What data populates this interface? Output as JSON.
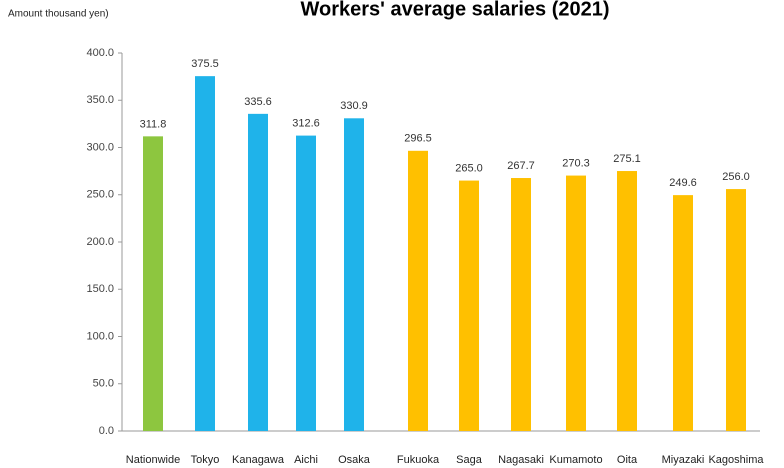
{
  "chart_data": {
    "type": "bar",
    "title": "Workers' average salaries (2021)",
    "y_label": "Amount thousand yen)",
    "categories": [
      "Nationwide",
      "Tokyo",
      "Kanagawa",
      "Aichi",
      "Osaka",
      "Fukuoka",
      "Saga",
      "Nagasaki",
      "Kumamoto",
      "Oita",
      "Miyazaki",
      "Kagoshima"
    ],
    "values": [
      311.8,
      375.5,
      335.6,
      312.6,
      330.9,
      296.5,
      265.0,
      267.7,
      270.3,
      275.1,
      249.6,
      256.0
    ],
    "value_labels": [
      "311.8",
      "375.5",
      "335.6",
      "312.6",
      "330.9",
      "296.5",
      "265.0",
      "267.7",
      "270.3",
      "275.1",
      "249.6",
      "256.0"
    ],
    "colors": [
      "#8dc63f",
      "#1fb3ea",
      "#1fb3ea",
      "#1fb3ea",
      "#1fb3ea",
      "#ffc000",
      "#ffc000",
      "#ffc000",
      "#ffc000",
      "#ffc000",
      "#ffc000",
      "#ffc000"
    ],
    "ylim": [
      0,
      400
    ],
    "yticks": [
      {
        "value": 0,
        "label": "0.0"
      },
      {
        "value": 50,
        "label": "50.0"
      },
      {
        "value": 100,
        "label": "100.0"
      },
      {
        "value": 150,
        "label": "150.0"
      },
      {
        "value": 200,
        "label": "200.0"
      },
      {
        "value": 250,
        "label": "250.0"
      },
      {
        "value": 300,
        "label": "300.0"
      },
      {
        "value": 350,
        "label": "350.0"
      },
      {
        "value": 400,
        "label": "400.0"
      }
    ],
    "grid": false
  }
}
